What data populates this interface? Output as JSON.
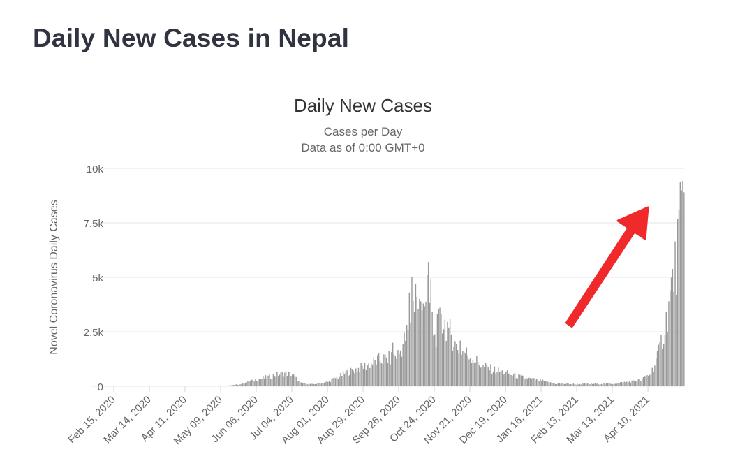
{
  "page": {
    "title": "Daily New Cases in Nepal"
  },
  "chart_data": {
    "type": "bar",
    "title": "Daily New Cases",
    "subtitle": [
      "Cases per Day",
      "Data as of 0:00 GMT+0"
    ],
    "xlabel": "",
    "ylabel": "Novel Coronavirus Daily Cases",
    "ylim": [
      0,
      10000
    ],
    "y_ticks": [
      0,
      2500,
      5000,
      7500,
      10000
    ],
    "y_tick_labels": [
      "0",
      "2.5k",
      "5k",
      "7.5k",
      "10k"
    ],
    "x_range": [
      "2020-02-15",
      "2021-05-08"
    ],
    "x_tick_labels": [
      "Feb 15, 2020",
      "Mar 14, 2020",
      "Apr 11, 2020",
      "May 09, 2020",
      "Jun 06, 2020",
      "Jul 04, 2020",
      "Aug 01, 2020",
      "Aug 29, 2020",
      "Sep 26, 2020",
      "Oct 24, 2020",
      "Nov 21, 2020",
      "Dec 19, 2020",
      "Jan 16, 2021",
      "Feb 13, 2021",
      "Mar 13, 2021",
      "Apr 10, 2021"
    ],
    "grid": true,
    "bar_color": "#999999",
    "series": [
      {
        "keypoints": [
          [
            "2020-02-15",
            0
          ],
          [
            "2020-05-09",
            0
          ],
          [
            "2020-05-15",
            30
          ],
          [
            "2020-05-25",
            100
          ],
          [
            "2020-06-01",
            250
          ],
          [
            "2020-06-10",
            350
          ],
          [
            "2020-06-20",
            500
          ],
          [
            "2020-06-28",
            600
          ],
          [
            "2020-07-04",
            550
          ],
          [
            "2020-07-10",
            150
          ],
          [
            "2020-07-20",
            90
          ],
          [
            "2020-08-01",
            200
          ],
          [
            "2020-08-15",
            600
          ],
          [
            "2020-08-29",
            900
          ],
          [
            "2020-09-10",
            1200
          ],
          [
            "2020-09-20",
            1300
          ],
          [
            "2020-09-26",
            1500
          ],
          [
            "2020-10-03",
            2500
          ],
          [
            "2020-10-08",
            4000
          ],
          [
            "2020-10-14",
            3500
          ],
          [
            "2020-10-18",
            4500
          ],
          [
            "2020-10-24",
            2200
          ],
          [
            "2020-10-28",
            3000
          ],
          [
            "2020-11-03",
            2800
          ],
          [
            "2020-11-10",
            1800
          ],
          [
            "2020-11-21",
            1400
          ],
          [
            "2020-12-01",
            900
          ],
          [
            "2020-12-19",
            600
          ],
          [
            "2021-01-01",
            400
          ],
          [
            "2021-01-16",
            250
          ],
          [
            "2021-01-26",
            120
          ],
          [
            "2021-02-13",
            100
          ],
          [
            "2021-03-13",
            120
          ],
          [
            "2021-03-25",
            200
          ],
          [
            "2021-04-05",
            300
          ],
          [
            "2021-04-12",
            600
          ],
          [
            "2021-04-18",
            1500
          ],
          [
            "2021-04-24",
            3000
          ],
          [
            "2021-04-29",
            4800
          ],
          [
            "2021-05-02",
            5700
          ],
          [
            "2021-05-04",
            7100
          ],
          [
            "2021-05-06",
            7600
          ],
          [
            "2021-05-08",
            8900
          ]
        ],
        "peaks": [
          [
            "2020-09-21",
            2000
          ],
          [
            "2020-10-04",
            4300
          ],
          [
            "2020-10-06",
            5000
          ],
          [
            "2020-10-09",
            4700
          ],
          [
            "2020-10-13",
            3900
          ],
          [
            "2020-10-15",
            3800
          ],
          [
            "2020-10-19",
            5700
          ],
          [
            "2020-10-21",
            4900
          ],
          [
            "2020-10-29",
            3300
          ],
          [
            "2020-11-04",
            2700
          ],
          [
            "2020-11-13",
            2100
          ],
          [
            "2021-05-08",
            8900
          ]
        ]
      }
    ]
  }
}
